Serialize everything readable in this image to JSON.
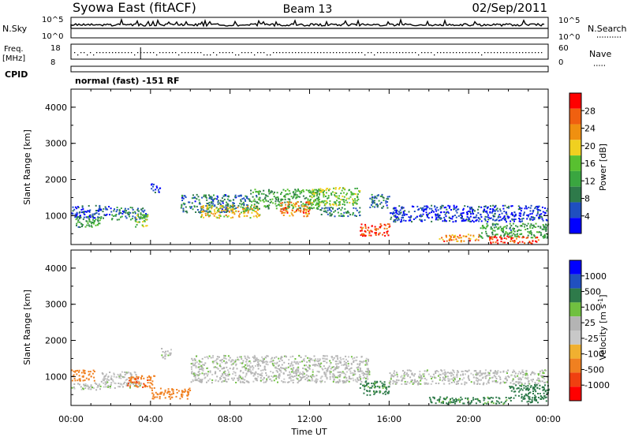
{
  "header": {
    "station": "Syowa East (fitACF)",
    "beam": "Beam 13",
    "date": "02/Sep/2011"
  },
  "status_panel": {
    "nsky_label": "N.Sky",
    "nsky_ticks": [
      "10^5",
      "10^0"
    ],
    "nsearch_label": "N.Search",
    "nsearch_ticks": [
      "10^5",
      "10^0"
    ],
    "freq_label": "Freq.",
    "freq_unit": "[MHz]",
    "freq_ticks": [
      "18",
      "8"
    ],
    "nave_label": "Nave",
    "nave_ticks": [
      "60",
      "0"
    ],
    "cpid_label": "CPID",
    "cpid_value": "normal (fast) -151 RF"
  },
  "colors": {
    "power_scale": [
      "#0000ff",
      "#1f4fc0",
      "#2e7a4a",
      "#3aa640",
      "#58c030",
      "#f0d020",
      "#f09010",
      "#f06010",
      "#ff0000"
    ],
    "velocity_scale": [
      "#ff0000",
      "#f04010",
      "#f08020",
      "#f0b030",
      "#c8c8c8",
      "#b4b4b4",
      "#70c040",
      "#2e7a4a",
      "#2050c0",
      "#0000ff"
    ]
  },
  "chart_data": [
    {
      "type": "heatmap",
      "name": "power",
      "ylabel": "Slant Range [km]",
      "yticks": [
        "1000",
        "2000",
        "3000",
        "4000"
      ],
      "ylim": [
        200,
        4500
      ],
      "colorbar_label": "Power [dB]",
      "colorbar_ticks": [
        "4",
        "8",
        "12",
        "16",
        "20",
        "24",
        "28"
      ],
      "colorbar_range": [
        0,
        32
      ],
      "regions": [
        {
          "t": [
            0.0,
            2.0
          ],
          "r": [
            950,
            1300
          ],
          "v": 4
        },
        {
          "t": [
            0.2,
            1.6
          ],
          "r": [
            700,
            1000
          ],
          "v": 12
        },
        {
          "t": [
            2.0,
            3.8
          ],
          "r": [
            900,
            1250
          ],
          "v": 8
        },
        {
          "t": [
            3.2,
            3.9
          ],
          "r": [
            700,
            1050
          ],
          "v": 16
        },
        {
          "t": [
            4.0,
            4.5
          ],
          "r": [
            1650,
            1900
          ],
          "v": 4
        },
        {
          "t": [
            5.5,
            9.0
          ],
          "r": [
            1100,
            1600
          ],
          "v": 8
        },
        {
          "t": [
            6.5,
            9.5
          ],
          "r": [
            950,
            1300
          ],
          "v": 20
        },
        {
          "t": [
            9.0,
            12.5
          ],
          "r": [
            1200,
            1750
          ],
          "v": 12
        },
        {
          "t": [
            10.5,
            12.0
          ],
          "r": [
            1000,
            1400
          ],
          "v": 24
        },
        {
          "t": [
            12.0,
            14.5
          ],
          "r": [
            1300,
            1800
          ],
          "v": 16
        },
        {
          "t": [
            12.5,
            14.5
          ],
          "r": [
            1000,
            1250
          ],
          "v": 8
        },
        {
          "t": [
            14.5,
            16.0
          ],
          "r": [
            450,
            800
          ],
          "v": 28
        },
        {
          "t": [
            15.0,
            16.0
          ],
          "r": [
            1200,
            1600
          ],
          "v": 8
        },
        {
          "t": [
            16.0,
            24.0
          ],
          "r": [
            850,
            1300
          ],
          "v": 4
        },
        {
          "t": [
            18.5,
            20.5
          ],
          "r": [
            300,
            500
          ],
          "v": 24
        },
        {
          "t": [
            20.5,
            24.0
          ],
          "r": [
            400,
            800
          ],
          "v": 12
        },
        {
          "t": [
            21.0,
            23.5
          ],
          "r": [
            250,
            450
          ],
          "v": 28
        }
      ]
    },
    {
      "type": "heatmap",
      "name": "velocity",
      "xlabel": "Time UT",
      "xticks": [
        "00:00",
        "04:00",
        "08:00",
        "12:00",
        "16:00",
        "20:00",
        "00:00"
      ],
      "xlim": [
        0,
        24
      ],
      "ylabel": "Slant Range [km]",
      "yticks": [
        "1000",
        "2000",
        "3000",
        "4000"
      ],
      "ylim": [
        200,
        4500
      ],
      "colorbar_label": "Velocity [m s^-1]",
      "colorbar_ticks": [
        "-1000",
        "-500",
        "-100",
        "-25",
        "25",
        "100",
        "500",
        "1000"
      ],
      "regions": [
        {
          "t": [
            0.0,
            1.2
          ],
          "r": [
            900,
            1200
          ],
          "v": -200
        },
        {
          "t": [
            0.0,
            1.5
          ],
          "r": [
            650,
            850
          ],
          "v": 10
        },
        {
          "t": [
            1.5,
            3.5
          ],
          "r": [
            700,
            1150
          ],
          "v": 10
        },
        {
          "t": [
            2.8,
            4.2
          ],
          "r": [
            700,
            1050
          ],
          "v": -400
        },
        {
          "t": [
            4.0,
            6.0
          ],
          "r": [
            400,
            700
          ],
          "v": -200
        },
        {
          "t": [
            6.0,
            15.0
          ],
          "r": [
            850,
            1600
          ],
          "v": 10
        },
        {
          "t": [
            14.5,
            16.0
          ],
          "r": [
            500,
            900
          ],
          "v": 150
        },
        {
          "t": [
            16.0,
            24.0
          ],
          "r": [
            800,
            1200
          ],
          "v": 10
        },
        {
          "t": [
            18.0,
            22.0
          ],
          "r": [
            250,
            450
          ],
          "v": 150
        },
        {
          "t": [
            22.0,
            24.0
          ],
          "r": [
            300,
            800
          ],
          "v": 300
        },
        {
          "t": [
            4.5,
            5.0
          ],
          "r": [
            1500,
            1800
          ],
          "v": 10
        }
      ]
    }
  ]
}
